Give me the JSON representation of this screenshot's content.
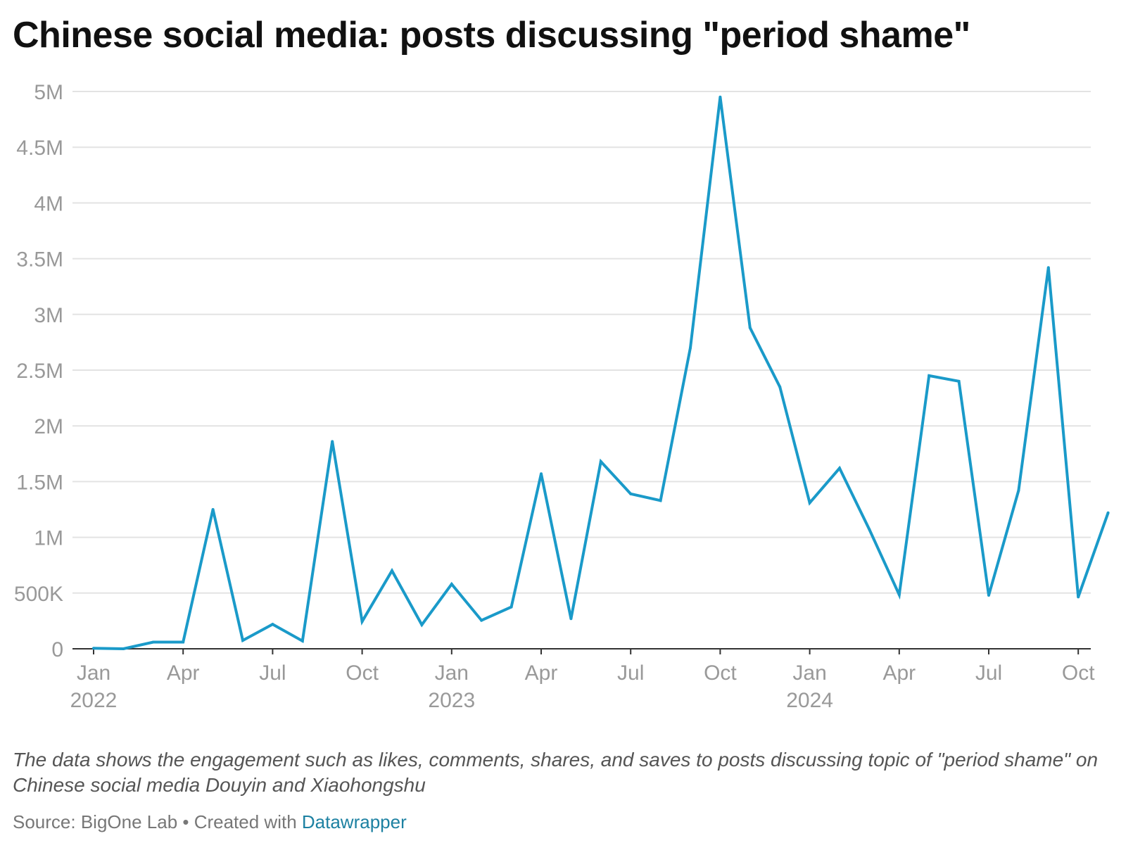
{
  "chart_data": {
    "type": "line",
    "title": "Chinese social media: posts discussing \"period shame\"",
    "note": "The data shows the engagement such as likes, comments, shares, and saves to posts discussing topic of \"period shame\" on Chinese social media Douyin and Xiaohongshu",
    "source_prefix": "Source: BigOne Lab • Created with ",
    "source_link": "Datawrapper",
    "line_color": "#1a9ac9",
    "grid": true,
    "ylim": [
      0,
      5000000
    ],
    "y_ticks": [
      {
        "value": 0,
        "label": "0"
      },
      {
        "value": 500000,
        "label": "500K"
      },
      {
        "value": 1000000,
        "label": "1M"
      },
      {
        "value": 1500000,
        "label": "1.5M"
      },
      {
        "value": 2000000,
        "label": "2M"
      },
      {
        "value": 2500000,
        "label": "2.5M"
      },
      {
        "value": 3000000,
        "label": "3M"
      },
      {
        "value": 3500000,
        "label": "3.5M"
      },
      {
        "value": 4000000,
        "label": "4M"
      },
      {
        "value": 4500000,
        "label": "4.5M"
      },
      {
        "value": 5000000,
        "label": "5M"
      }
    ],
    "x_ticks": [
      {
        "x": "2022-01",
        "label": "Jan",
        "year": "2022"
      },
      {
        "x": "2022-04",
        "label": "Apr"
      },
      {
        "x": "2022-07",
        "label": "Jul"
      },
      {
        "x": "2022-10",
        "label": "Oct"
      },
      {
        "x": "2023-01",
        "label": "Jan",
        "year": "2023"
      },
      {
        "x": "2023-04",
        "label": "Apr"
      },
      {
        "x": "2023-07",
        "label": "Jul"
      },
      {
        "x": "2023-10",
        "label": "Oct"
      },
      {
        "x": "2024-01",
        "label": "Jan",
        "year": "2024"
      },
      {
        "x": "2024-04",
        "label": "Apr"
      },
      {
        "x": "2024-07",
        "label": "Jul"
      },
      {
        "x": "2024-10",
        "label": "Oct"
      }
    ],
    "x": [
      "2022-01",
      "2022-02",
      "2022-03",
      "2022-04",
      "2022-05",
      "2022-06",
      "2022-07",
      "2022-08",
      "2022-09",
      "2022-10",
      "2022-11",
      "2022-12",
      "2023-01",
      "2023-02",
      "2023-03",
      "2023-04",
      "2023-05",
      "2023-06",
      "2023-07",
      "2023-08",
      "2023-09",
      "2023-10",
      "2023-11",
      "2023-12",
      "2024-01",
      "2024-02",
      "2024-03",
      "2024-04",
      "2024-05",
      "2024-06",
      "2024-07",
      "2024-08",
      "2024-09",
      "2024-10",
      "2024-11"
    ],
    "series": [
      {
        "values": [
          5000,
          0,
          60000,
          60000,
          1250000,
          75000,
          220000,
          70000,
          1860000,
          245000,
          700000,
          215000,
          580000,
          255000,
          375000,
          1570000,
          270000,
          1680000,
          1390000,
          1330000,
          2700000,
          4950000,
          2880000,
          2350000,
          1310000,
          1620000,
          1070000,
          485000,
          2450000,
          2400000,
          480000,
          1420000,
          3420000,
          465000,
          1220000
        ]
      }
    ]
  }
}
